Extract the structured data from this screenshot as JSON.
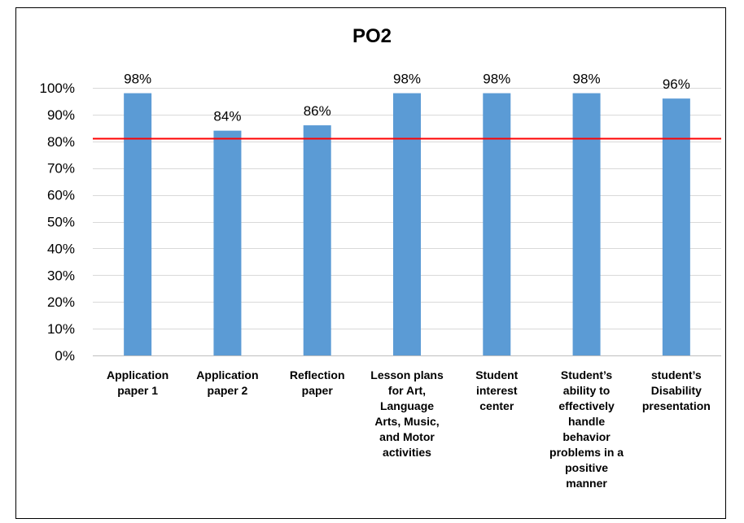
{
  "chart_data": {
    "type": "bar",
    "title": "PO2",
    "categories": [
      "Application paper 1",
      "Application paper 2",
      "Reflection paper",
      "Lesson plans for Art, Language Arts, Music, and Motor activities",
      "Student interest center",
      "Student’s ability to effectively handle behavior problems in a positive manner",
      "student’s Disability presentation"
    ],
    "category_lines": [
      [
        "Application",
        "paper 1"
      ],
      [
        "Application",
        "paper 2"
      ],
      [
        "Reflection",
        "paper"
      ],
      [
        "Lesson plans",
        "for Art,",
        "Language",
        "Arts, Music,",
        "and Motor",
        "activities"
      ],
      [
        "Student",
        "interest",
        "center"
      ],
      [
        "Student’s",
        "ability to",
        "effectively",
        "handle",
        "behavior",
        "problems in a",
        "positive",
        "manner"
      ],
      [
        "student’s",
        "Disability",
        "presentation"
      ]
    ],
    "values": [
      98,
      84,
      86,
      98,
      98,
      98,
      96
    ],
    "data_labels": [
      "98%",
      "84%",
      "86%",
      "98%",
      "98%",
      "98%",
      "96%"
    ],
    "ylim": [
      0,
      100
    ],
    "yticks": [
      0,
      10,
      20,
      30,
      40,
      50,
      60,
      70,
      80,
      90,
      100
    ],
    "ytick_labels": [
      "0%",
      "10%",
      "20%",
      "30%",
      "40%",
      "50%",
      "60%",
      "70%",
      "80%",
      "90%",
      "100%"
    ],
    "target_line": 81,
    "grid": "horizontal",
    "legend": "none",
    "xlabel": "",
    "ylabel": "",
    "colors": {
      "bar": "#5B9BD5",
      "target_line": "#FF0000",
      "gridline": "#D9D9D9",
      "axis": "#BFBFBF"
    }
  }
}
